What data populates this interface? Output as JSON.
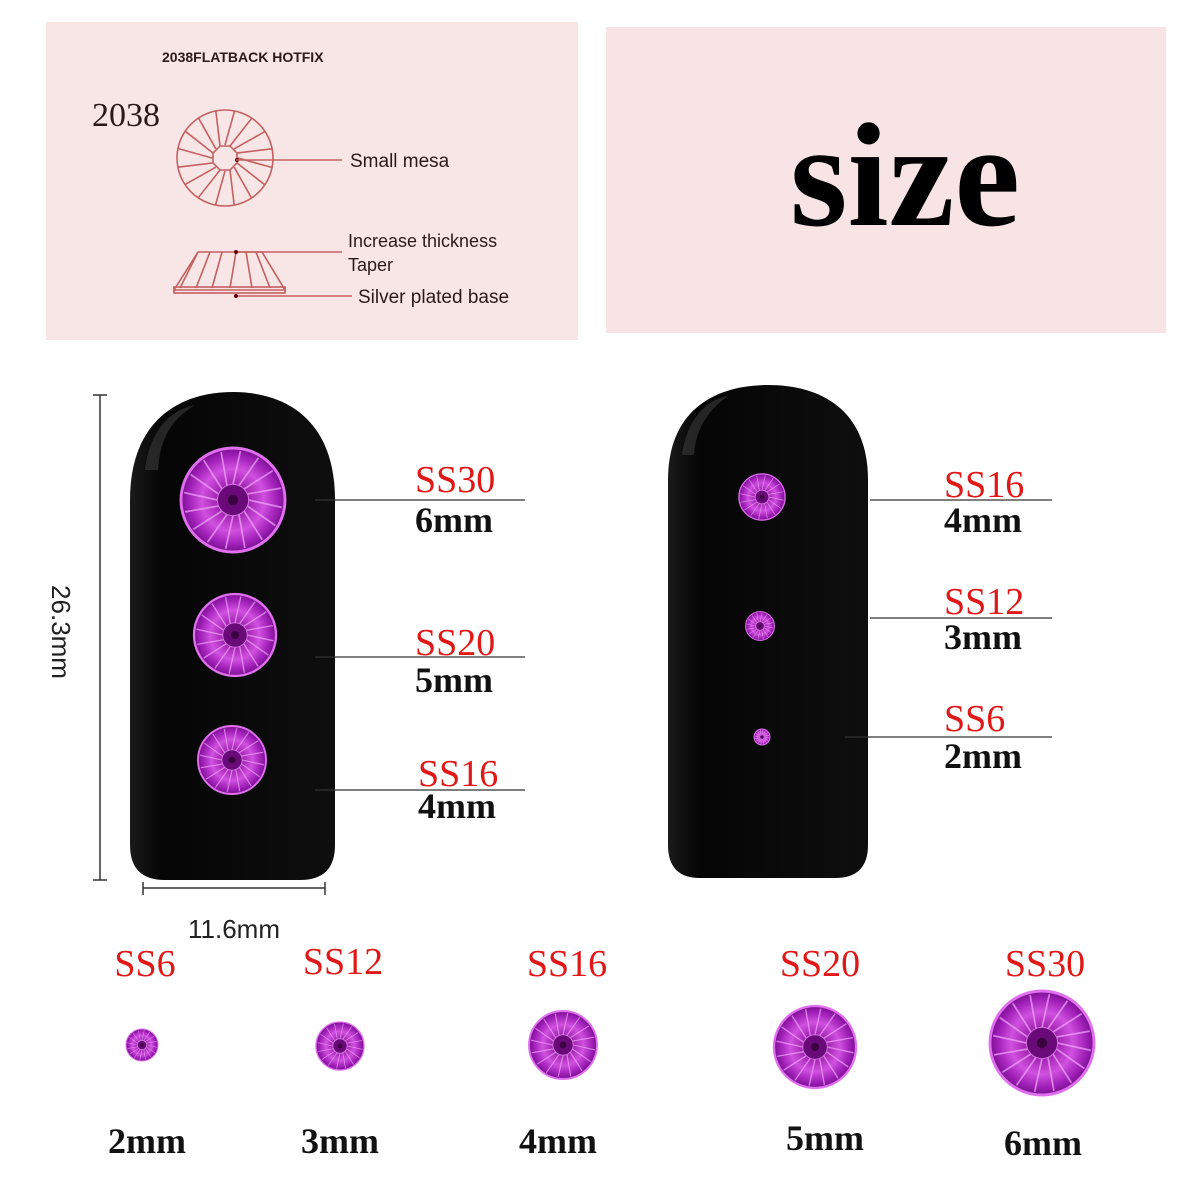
{
  "diagram": {
    "header": "2038FLATBACK HOTFIX",
    "model": "2038",
    "labels": {
      "small_mesa": "Small mesa",
      "increase_thickness": "Increase thickness",
      "taper": "Taper",
      "base": "Silver plated base"
    }
  },
  "title": "size",
  "nail_dimensions": {
    "height": "26.3mm",
    "width": "11.6mm"
  },
  "left_nail": [
    {
      "ss": "SS30",
      "mm": "6mm"
    },
    {
      "ss": "SS20",
      "mm": "5mm"
    },
    {
      "ss": "SS16",
      "mm": "4mm"
    }
  ],
  "right_nail": [
    {
      "ss": "SS16",
      "mm": "4mm"
    },
    {
      "ss": "SS12",
      "mm": "3mm"
    },
    {
      "ss": "SS6",
      "mm": "2mm"
    }
  ],
  "bottom_row": [
    {
      "ss": "SS6",
      "mm": "2mm"
    },
    {
      "ss": "SS12",
      "mm": "3mm"
    },
    {
      "ss": "SS16",
      "mm": "4mm"
    },
    {
      "ss": "SS20",
      "mm": "5mm"
    },
    {
      "ss": "SS30",
      "mm": "6mm"
    }
  ],
  "colors": {
    "panel": "#f8e6e6",
    "label_red": "#e01818",
    "gem": "#b226c8",
    "nail": "#0c0c0c"
  }
}
